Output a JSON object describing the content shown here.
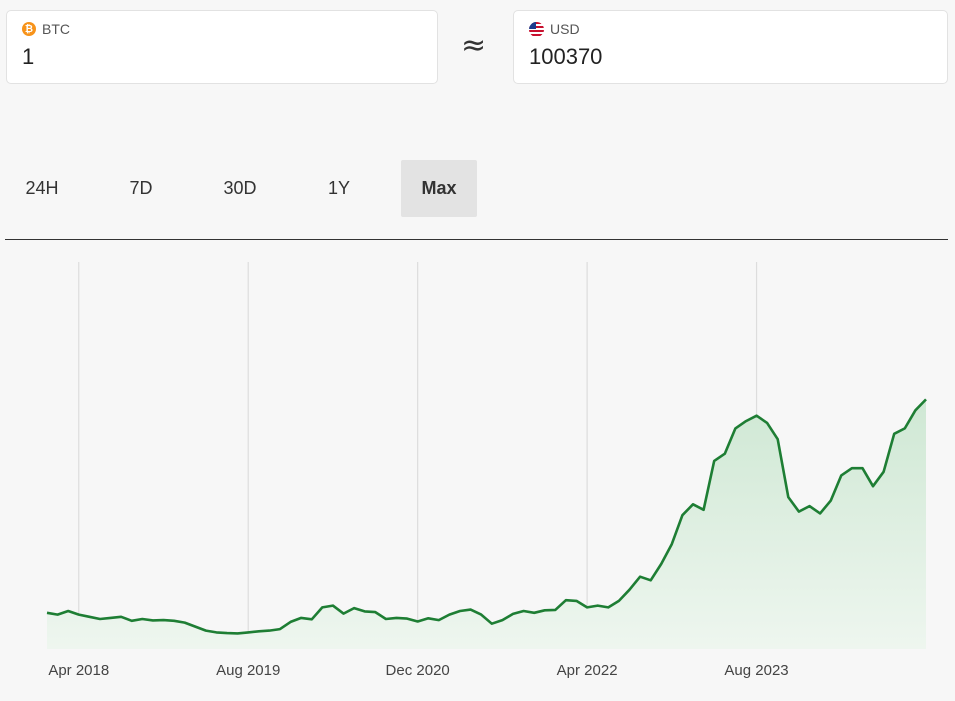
{
  "converter": {
    "from": {
      "code": "BTC",
      "icon": "bitcoin-icon",
      "value": "1"
    },
    "approx_symbol": "≈",
    "to": {
      "code": "USD",
      "icon": "us-flag-icon",
      "value": "100370"
    }
  },
  "tabs": [
    {
      "label": "24H",
      "active": false
    },
    {
      "label": "7D",
      "active": false
    },
    {
      "label": "30D",
      "active": false
    },
    {
      "label": "1Y",
      "active": false
    },
    {
      "label": "Max",
      "active": true
    }
  ],
  "colors": {
    "line": "#1e7e34",
    "fill_top": "#cfe8d4",
    "fill_bottom": "#eef6ef",
    "grid": "#dddddd",
    "bitcoin": "#f7931a"
  },
  "chart_data": {
    "type": "area",
    "xlabel": "",
    "ylabel": "",
    "x_ticks": [
      "Apr 2018",
      "Aug 2019",
      "Dec 2020",
      "Apr 2022",
      "Aug 2023"
    ],
    "x_range": [
      "2018-01",
      "2024-12"
    ],
    "ylim": [
      0,
      107000
    ],
    "grid": {
      "vertical": true,
      "horizontal": false
    },
    "series": [
      {
        "values": [
          [
            "2018-01",
            10000
          ],
          [
            "2018-02",
            9500
          ],
          [
            "2018-03",
            10500
          ],
          [
            "2018-04",
            9500
          ],
          [
            "2018-05",
            8900
          ],
          [
            "2018-06",
            8300
          ],
          [
            "2018-07",
            8600
          ],
          [
            "2018-08",
            8900
          ],
          [
            "2018-09",
            7800
          ],
          [
            "2018-10",
            8300
          ],
          [
            "2018-11",
            7900
          ],
          [
            "2018-12",
            8000
          ],
          [
            "2019-01",
            7800
          ],
          [
            "2019-02",
            7300
          ],
          [
            "2019-03",
            6200
          ],
          [
            "2019-04",
            5100
          ],
          [
            "2019-05",
            4600
          ],
          [
            "2019-06",
            4400
          ],
          [
            "2019-07",
            4300
          ],
          [
            "2019-08",
            4600
          ],
          [
            "2019-09",
            4900
          ],
          [
            "2019-10",
            5100
          ],
          [
            "2019-11",
            5500
          ],
          [
            "2019-12",
            7500
          ],
          [
            "2020-01",
            8600
          ],
          [
            "2020-02",
            8200
          ],
          [
            "2020-03",
            11500
          ],
          [
            "2020-04",
            12000
          ],
          [
            "2020-05",
            9800
          ],
          [
            "2020-06",
            11300
          ],
          [
            "2020-07",
            10400
          ],
          [
            "2020-08",
            10200
          ],
          [
            "2020-09",
            8300
          ],
          [
            "2020-10",
            8600
          ],
          [
            "2020-11",
            8400
          ],
          [
            "2020-12",
            7600
          ],
          [
            "2021-01",
            8500
          ],
          [
            "2021-02",
            8000
          ],
          [
            "2021-03",
            9500
          ],
          [
            "2021-04",
            10500
          ],
          [
            "2021-05",
            10900
          ],
          [
            "2021-06",
            9500
          ],
          [
            "2021-07",
            7000
          ],
          [
            "2021-08",
            8000
          ],
          [
            "2021-09",
            9700
          ],
          [
            "2021-10",
            10500
          ],
          [
            "2021-11",
            10000
          ],
          [
            "2021-12",
            10700
          ],
          [
            "2022-01",
            10800
          ],
          [
            "2022-02",
            13500
          ],
          [
            "2022-03",
            13300
          ],
          [
            "2022-04",
            11500
          ],
          [
            "2022-05",
            12000
          ],
          [
            "2022-06",
            11500
          ],
          [
            "2022-07",
            13300
          ],
          [
            "2022-08",
            16400
          ],
          [
            "2022-09",
            20000
          ],
          [
            "2022-10",
            19000
          ],
          [
            "2022-11",
            23500
          ],
          [
            "2022-12",
            29000
          ],
          [
            "2023-01",
            37000
          ],
          [
            "2023-02",
            40000
          ],
          [
            "2023-03",
            38500
          ],
          [
            "2023-04",
            52000
          ],
          [
            "2023-05",
            54000
          ],
          [
            "2023-06",
            61000
          ],
          [
            "2023-07",
            63000
          ],
          [
            "2023-08",
            64500
          ],
          [
            "2023-09",
            62500
          ],
          [
            "2023-10",
            58000
          ],
          [
            "2023-11",
            42000
          ],
          [
            "2023-12",
            38000
          ],
          [
            "2024-01",
            39500
          ],
          [
            "2024-02",
            37500
          ],
          [
            "2024-03",
            41000
          ],
          [
            "2024-04",
            48000
          ],
          [
            "2024-05",
            50000
          ],
          [
            "2024-06",
            50000
          ],
          [
            "2024-07",
            45000
          ],
          [
            "2024-08",
            49000
          ],
          [
            "2024-09",
            59500
          ],
          [
            "2024-10",
            61000
          ],
          [
            "2024-11",
            66000
          ],
          [
            "2024-12",
            69000
          ]
        ]
      }
    ]
  }
}
